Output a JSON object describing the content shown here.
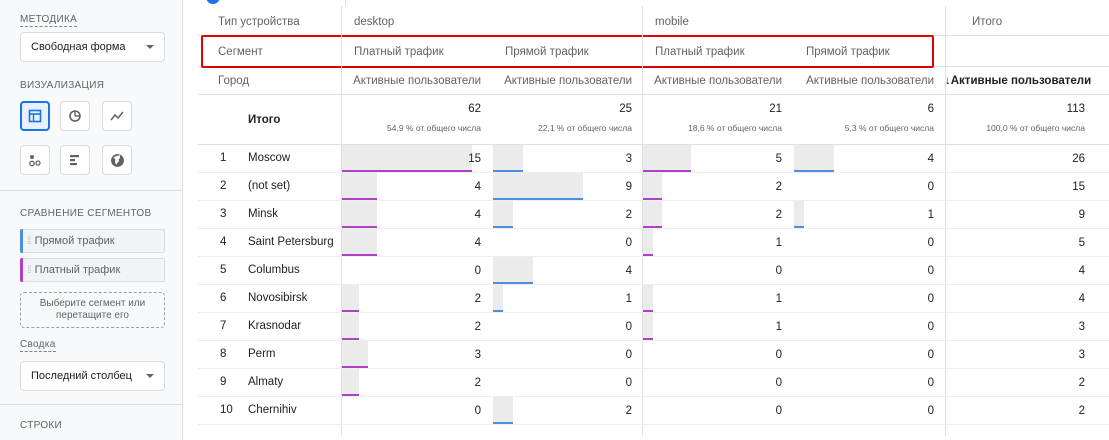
{
  "colors": {
    "accent": "#1a73e8",
    "segment_direct": "#4a8fdc",
    "segment_paid": "#b23fc7",
    "highlight": "#e00000"
  },
  "sidebar": {
    "method_title": "МЕТОДИКА",
    "method_value": "Свободная форма",
    "viz_title": "ВИЗУАЛИЗАЦИЯ",
    "viz_icons": [
      "table-icon",
      "donut-chart-icon",
      "line-chart-icon",
      "scatter-icon",
      "bar-chart-icon",
      "globe-icon"
    ],
    "compare_title": "СРАВНЕНИЕ СЕГМЕНТОВ",
    "segments": [
      "Прямой трафик",
      "Платный трафик"
    ],
    "drop_line1": "Выберите сегмент или",
    "drop_line2": "перетащите его",
    "summary_title": "Сводка",
    "summary_value": "Последний столбец",
    "rows_title": "СТРОКИ"
  },
  "table": {
    "device_label": "Тип устройства",
    "device_desktop": "desktop",
    "device_mobile": "mobile",
    "total_header": "Итого",
    "segment_label": "Сегмент",
    "seg_paid": "Платный трафик",
    "seg_direct": "Прямой трафик",
    "city_label": "Город",
    "metric": "Активные пользователи",
    "metric_sorted": "Активные пользователи",
    "totals_label": "Итого",
    "totals": [
      {
        "value": "62",
        "pct": "54,9 % от общего числа"
      },
      {
        "value": "25",
        "pct": "22,1 % от общего числа"
      },
      {
        "value": "21",
        "pct": "18,6 % от общего числа"
      },
      {
        "value": "6",
        "pct": "5,3 % от общего числа"
      },
      {
        "value": "113",
        "pct": "100,0 % от общего числа"
      }
    ],
    "rows": [
      {
        "n": "1",
        "city": "Moscow",
        "v": [
          "15",
          "3",
          "5",
          "4",
          "26"
        ]
      },
      {
        "n": "2",
        "city": "(not set)",
        "v": [
          "4",
          "9",
          "2",
          "0",
          "15"
        ]
      },
      {
        "n": "3",
        "city": "Minsk",
        "v": [
          "4",
          "2",
          "2",
          "1",
          "9"
        ]
      },
      {
        "n": "4",
        "city": "Saint Petersburg",
        "v": [
          "4",
          "0",
          "1",
          "0",
          "5"
        ]
      },
      {
        "n": "5",
        "city": "Columbus",
        "v": [
          "0",
          "4",
          "0",
          "0",
          "4"
        ]
      },
      {
        "n": "6",
        "city": "Novosibirsk",
        "v": [
          "2",
          "1",
          "1",
          "0",
          "4"
        ]
      },
      {
        "n": "7",
        "city": "Krasnodar",
        "v": [
          "2",
          "0",
          "1",
          "0",
          "3"
        ]
      },
      {
        "n": "8",
        "city": "Perm",
        "v": [
          "3",
          "0",
          "0",
          "0",
          "3"
        ]
      },
      {
        "n": "9",
        "city": "Almaty",
        "v": [
          "2",
          "0",
          "0",
          "0",
          "2"
        ]
      },
      {
        "n": "10",
        "city": "Chernihiv",
        "v": [
          "0",
          "2",
          "0",
          "0",
          "2"
        ]
      }
    ]
  }
}
